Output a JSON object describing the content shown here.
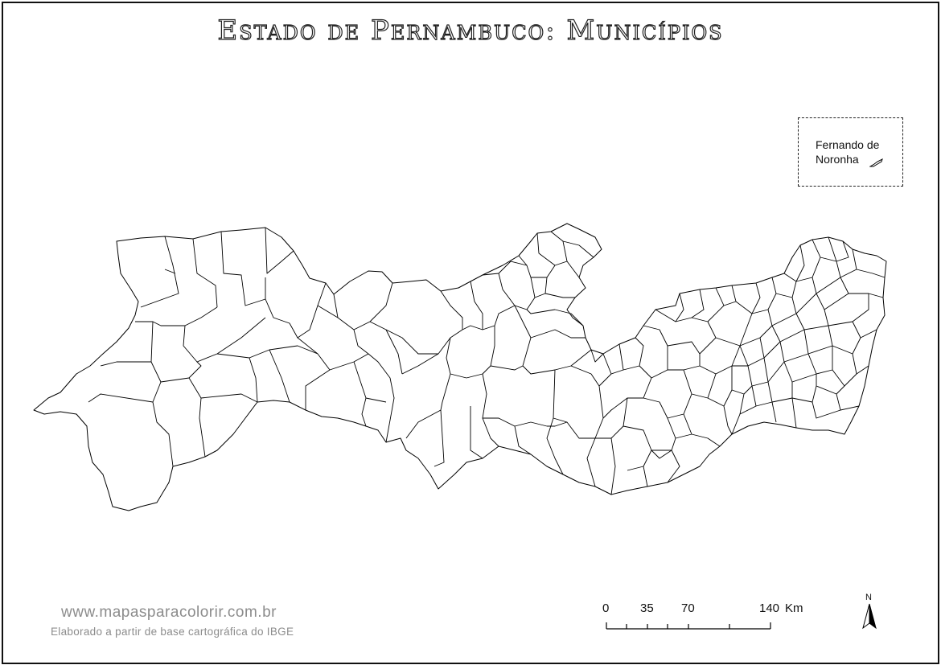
{
  "title": "Estado de Pernambuco: Municípios",
  "inset": {
    "label": "Fernando de\nNoronha"
  },
  "website": "www.mapasparacolorir.com.br",
  "credit": "Elaborado a partir de base cartográfica do IBGE",
  "scale": {
    "ticks": [
      "0",
      "35",
      "70",
      "140"
    ],
    "unit": "Km"
  },
  "north_label": "N",
  "icons": {
    "north_arrow": "north-arrow-icon",
    "island": "island-shape"
  },
  "colors": {
    "outline": "#000000",
    "fill": "#ffffff",
    "credit_text": "#8c8c8c"
  }
}
